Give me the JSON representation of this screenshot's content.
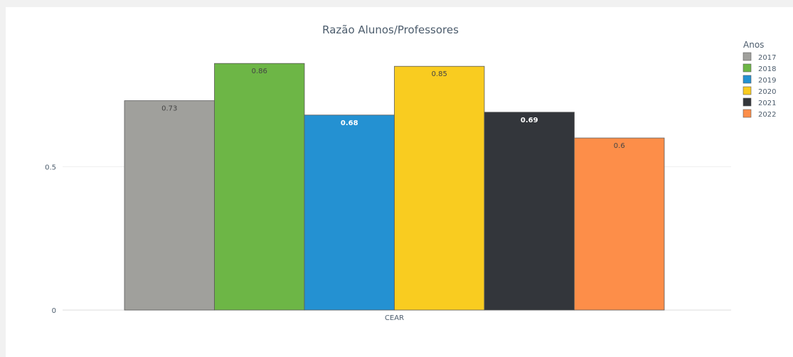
{
  "chart_data": {
    "type": "bar",
    "title": "Razão Alunos/Professores",
    "categories": [
      "CEAR"
    ],
    "legend_title": "Anos",
    "legend_position": "right",
    "grid": true,
    "ylim": [
      0,
      0.92
    ],
    "yticks": [
      {
        "value": 0,
        "label": "0"
      },
      {
        "value": 0.5,
        "label": "0.5"
      }
    ],
    "series": [
      {
        "name": "2017",
        "values": [
          0.73
        ],
        "label": "0.73",
        "color": "#a0a09c",
        "label_color": "#444444",
        "label_weight": "normal"
      },
      {
        "name": "2018",
        "values": [
          0.86
        ],
        "label": "0.86",
        "color": "#6db646",
        "label_color": "#444444",
        "label_weight": "normal"
      },
      {
        "name": "2019",
        "values": [
          0.68
        ],
        "label": "0.68",
        "color": "#2491d2",
        "label_color": "#ffffff",
        "label_weight": "bold"
      },
      {
        "name": "2020",
        "values": [
          0.85
        ],
        "label": "0.85",
        "color": "#f9cc20",
        "label_color": "#444444",
        "label_weight": "normal"
      },
      {
        "name": "2021",
        "values": [
          0.69
        ],
        "label": "0.69",
        "color": "#33363b",
        "label_color": "#ffffff",
        "label_weight": "bold"
      },
      {
        "name": "2022",
        "values": [
          0.6
        ],
        "label": "0.6",
        "color": "#fd8e49",
        "label_color": "#444444",
        "label_weight": "normal"
      }
    ]
  }
}
